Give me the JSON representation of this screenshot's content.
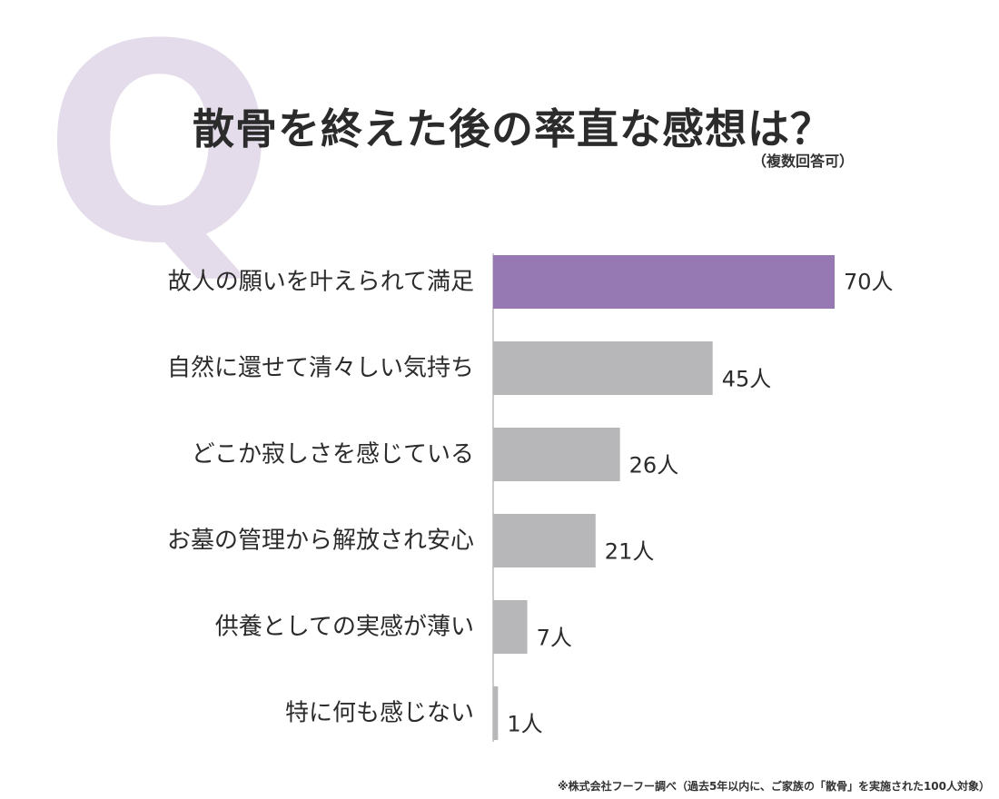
{
  "q_label": "Q",
  "title": "散骨を終えた後の率直な感想は？",
  "subtitle": "（複数回答可）",
  "footnote": "※株式会社フーフー調べ（過去5年以内に、ご家族の「散骨」を実施された100人対象）",
  "colors": {
    "highlight": "#9679b2",
    "bar": "#b7b6b9",
    "text": "#2b2b2b",
    "q_watermark": "#e4dcea"
  },
  "chart_data": {
    "type": "bar",
    "orientation": "horizontal",
    "categories": [
      "故人の願いを叶えられて満足",
      "自然に還せて清々しい気持ち",
      "どこか寂しさを感じている",
      "お墓の管理から解放され安心",
      "供養としての実感が薄い",
      "特に何も感じない"
    ],
    "values": [
      70,
      45,
      26,
      21,
      7,
      1
    ],
    "value_unit": "人",
    "highlight_index": 0,
    "title": "散骨を終えた後の率直な感想は？",
    "xlabel": "",
    "ylabel": "",
    "grid": false,
    "legend": "none"
  }
}
